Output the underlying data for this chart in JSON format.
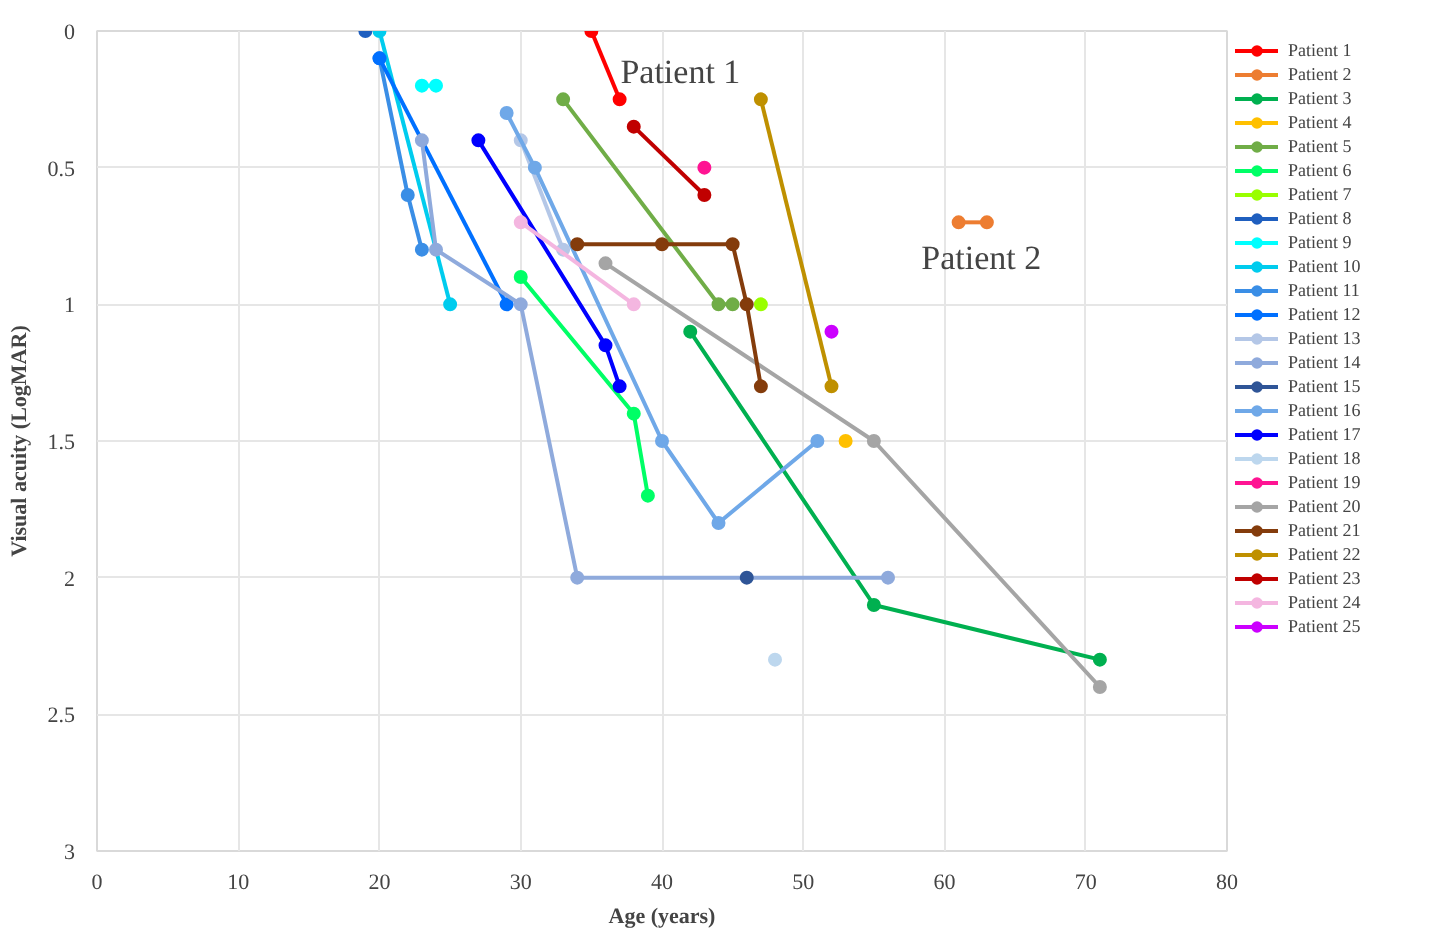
{
  "chart_data": {
    "type": "line",
    "xlabel": "Age (years)",
    "ylabel": "Visual acuity (LogMAR)",
    "xlim": [
      0,
      80
    ],
    "xticks": [
      0,
      10,
      20,
      30,
      40,
      50,
      60,
      70,
      80
    ],
    "ylim": [
      3,
      0
    ],
    "yticks": [
      0,
      0.5,
      1,
      1.5,
      2,
      2.5,
      3
    ],
    "grid": true,
    "legend": "right",
    "marker": "circle",
    "line_style": "solid",
    "annotations": [
      "Patient 1",
      "Patient 2"
    ],
    "series": [
      {
        "name": "Patient 1",
        "color": "#ff0000",
        "x": [
          35,
          37
        ],
        "values": [
          0,
          0.25
        ]
      },
      {
        "name": "Patient 2",
        "color": "#ed7d31",
        "x": [
          61,
          63
        ],
        "values": [
          0.7,
          0.7
        ]
      },
      {
        "name": "Patient 3",
        "color": "#00b050",
        "x": [
          42,
          55,
          71
        ],
        "values": [
          1.1,
          2.1,
          2.3
        ]
      },
      {
        "name": "Patient 4",
        "color": "#ffc000",
        "x": [
          53
        ],
        "values": [
          1.5
        ]
      },
      {
        "name": "Patient 5",
        "color": "#70ad47",
        "x": [
          33,
          44,
          45
        ],
        "values": [
          0.25,
          1.0,
          1.0
        ]
      },
      {
        "name": "Patient 6",
        "color": "#00ff66",
        "x": [
          30,
          38,
          39
        ],
        "values": [
          0.9,
          1.4,
          1.7
        ]
      },
      {
        "name": "Patient 7",
        "color": "#99ff00",
        "x": [
          47
        ],
        "values": [
          1.0
        ]
      },
      {
        "name": "Patient 8",
        "color": "#1f5fbf",
        "x": [
          19
        ],
        "values": [
          0
        ]
      },
      {
        "name": "Patient 9",
        "color": "#00ffff",
        "x": [
          23,
          24
        ],
        "values": [
          0.2,
          0.2
        ]
      },
      {
        "name": "Patient 10",
        "color": "#00ccee",
        "x": [
          20,
          25
        ],
        "values": [
          0,
          1.0
        ]
      },
      {
        "name": "Patient 11",
        "color": "#3a8ee6",
        "x": [
          20,
          22,
          23
        ],
        "values": [
          0.1,
          0.6,
          0.8
        ]
      },
      {
        "name": "Patient 12",
        "color": "#0070ff",
        "x": [
          20,
          29
        ],
        "values": [
          0.1,
          1.0
        ]
      },
      {
        "name": "Patient 13",
        "color": "#b4c7e7",
        "x": [
          30,
          33
        ],
        "values": [
          0.4,
          0.8
        ]
      },
      {
        "name": "Patient 14",
        "color": "#8faadc",
        "x": [
          23,
          24,
          30,
          34,
          56
        ],
        "values": [
          0.4,
          0.8,
          1.0,
          2.0,
          2.0
        ]
      },
      {
        "name": "Patient 15",
        "color": "#2f5597",
        "x": [
          46
        ],
        "values": [
          2.0
        ]
      },
      {
        "name": "Patient 16",
        "color": "#6fa8e8",
        "x": [
          29,
          31,
          40,
          44,
          51
        ],
        "values": [
          0.3,
          0.5,
          1.5,
          1.8,
          1.5
        ]
      },
      {
        "name": "Patient 17",
        "color": "#0000ff",
        "x": [
          27,
          36,
          37
        ],
        "values": [
          0.4,
          1.15,
          1.3
        ]
      },
      {
        "name": "Patient 18",
        "color": "#bdd7ee",
        "x": [
          48
        ],
        "values": [
          2.3
        ]
      },
      {
        "name": "Patient 19",
        "color": "#ff1493",
        "x": [
          43
        ],
        "values": [
          0.5
        ]
      },
      {
        "name": "Patient 20",
        "color": "#a5a5a5",
        "x": [
          36,
          55,
          71
        ],
        "values": [
          0.85,
          1.5,
          2.4
        ]
      },
      {
        "name": "Patient 21",
        "color": "#843c0c",
        "x": [
          34,
          40,
          45,
          46,
          47
        ],
        "values": [
          0.78,
          0.78,
          0.78,
          1.0,
          1.3
        ]
      },
      {
        "name": "Patient 22",
        "color": "#bf9000",
        "x": [
          47,
          52
        ],
        "values": [
          0.25,
          1.3
        ]
      },
      {
        "name": "Patient 23",
        "color": "#c00000",
        "x": [
          38,
          43
        ],
        "values": [
          0.35,
          0.6
        ]
      },
      {
        "name": "Patient 24",
        "color": "#f4b6e0",
        "x": [
          30,
          38
        ],
        "values": [
          0.7,
          1.0
        ]
      },
      {
        "name": "Patient 25",
        "color": "#cc00ff",
        "x": [
          52
        ],
        "values": [
          1.1
        ]
      }
    ]
  }
}
